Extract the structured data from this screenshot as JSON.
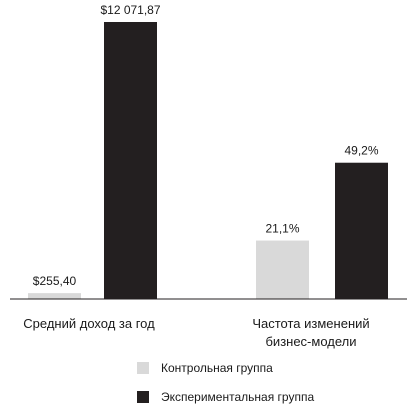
{
  "chart_data": {
    "type": "bar",
    "panels": [
      {
        "category": "Средний доход за год",
        "category_lines": [
          "Средний доход за год"
        ],
        "values": [
          255.4,
          12071.87
        ],
        "value_labels": [
          "$255,40",
          "$12 071,87"
        ],
        "ylim": [
          0,
          12071.87
        ]
      },
      {
        "category": "Частота изменений бизнес-модели",
        "category_lines": [
          "Частота изменений",
          "бизнес-модели"
        ],
        "values": [
          21.1,
          49.2
        ],
        "value_labels": [
          "21,1%",
          "49,2%"
        ],
        "ylim": [
          0,
          100
        ]
      }
    ],
    "series": [
      {
        "name": "Контрольная группа",
        "color": "#d9d9d9"
      },
      {
        "name": "Экспериментальная группа",
        "color": "#231f20"
      }
    ],
    "legend_position": "bottom",
    "grid": false
  }
}
